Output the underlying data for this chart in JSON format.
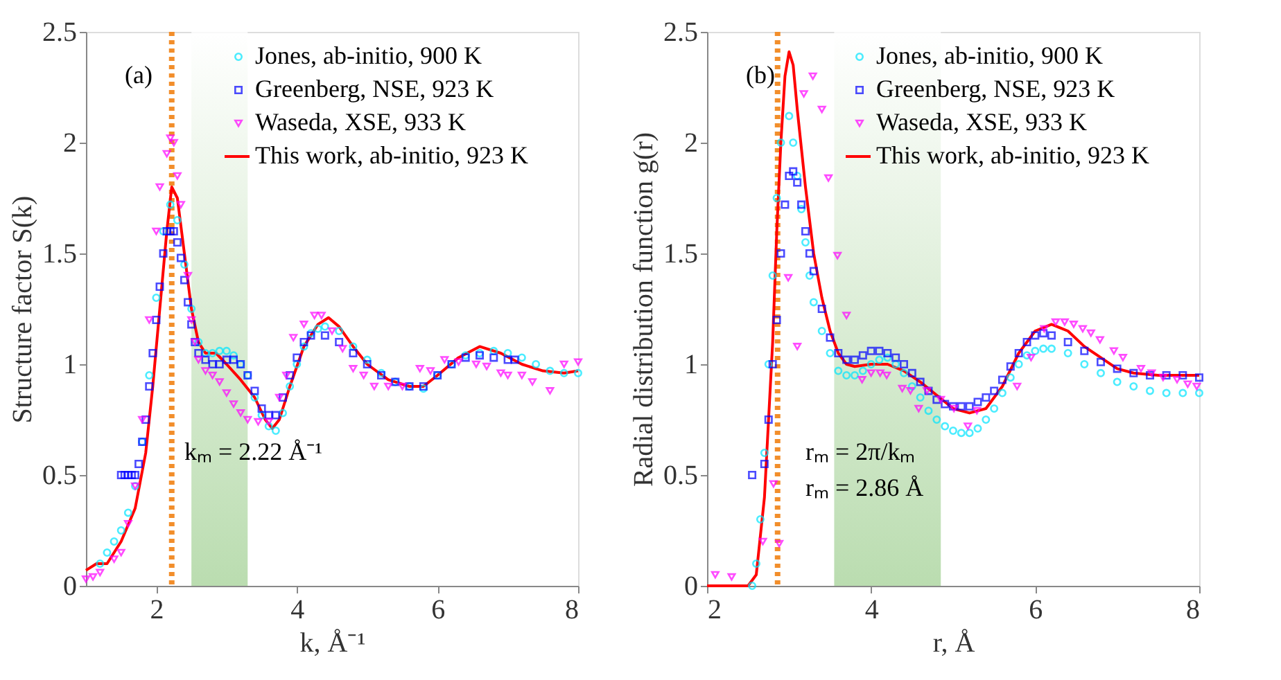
{
  "chart_data": [
    {
      "type": "scatter",
      "xlabel": "k, Å⁻¹",
      "ylabel": "Structure factor S(k)",
      "xlim": [
        1,
        8
      ],
      "ylim": [
        0,
        2.5
      ],
      "xticks": [
        2,
        4,
        6,
        8
      ],
      "yticks": [
        0,
        0.5,
        1,
        1.5,
        2,
        2.5
      ],
      "grid": false,
      "legend": "top right",
      "annotations": [
        "(a)",
        "kₘ = 2.22 Å⁻¹"
      ],
      "ref_lines": [
        {
          "axis": "x",
          "value": 2.22,
          "color": "#f28e2b",
          "line_style": "dotted"
        }
      ],
      "bands": [
        {
          "axis": "x",
          "from": 2.5,
          "to": 3.3,
          "color": "#a9d49c"
        }
      ],
      "series": [
        {
          "name": "Jones, ab-initio, 900 K",
          "marker": "circle",
          "color": "#00e5ff",
          "x": [
            1.2,
            1.3,
            1.4,
            1.5,
            1.6,
            1.7,
            1.8,
            1.9,
            2.0,
            2.1,
            2.2,
            2.3,
            2.4,
            2.5,
            2.6,
            2.7,
            2.8,
            2.9,
            3.0,
            3.1,
            3.2,
            3.3,
            3.4,
            3.5,
            3.6,
            3.7,
            3.8,
            3.9,
            4.0,
            4.1,
            4.2,
            4.3,
            4.4,
            4.6,
            4.8,
            5.0,
            5.2,
            5.4,
            5.6,
            5.8,
            6.0,
            6.2,
            6.4,
            6.6,
            6.8,
            7.0,
            7.2,
            7.4,
            7.6,
            7.8,
            8.0
          ],
          "values": [
            0.1,
            0.15,
            0.2,
            0.25,
            0.33,
            0.45,
            0.65,
            0.95,
            1.3,
            1.6,
            1.72,
            1.65,
            1.45,
            1.25,
            1.1,
            1.05,
            1.05,
            1.06,
            1.06,
            1.04,
            1.0,
            0.95,
            0.85,
            0.77,
            0.72,
            0.7,
            0.78,
            0.9,
            1.0,
            1.08,
            1.14,
            1.16,
            1.17,
            1.15,
            1.08,
            1.02,
            0.96,
            0.92,
            0.9,
            0.89,
            0.95,
            1.0,
            1.04,
            1.05,
            1.06,
            1.05,
            1.03,
            1.0,
            0.97,
            0.96,
            0.96
          ]
        },
        {
          "name": "Greenberg, NSE, 923 K",
          "marker": "square",
          "color": "#0000ff",
          "x": [
            1.5,
            1.55,
            1.6,
            1.65,
            1.7,
            1.75,
            1.8,
            1.85,
            1.9,
            1.95,
            2.0,
            2.05,
            2.1,
            2.15,
            2.2,
            2.25,
            2.3,
            2.35,
            2.4,
            2.45,
            2.5,
            2.55,
            2.6,
            2.7,
            2.8,
            2.9,
            3.0,
            3.1,
            3.2,
            3.3,
            3.4,
            3.5,
            3.6,
            3.7,
            3.8,
            3.9,
            4.0,
            4.1,
            4.2,
            4.4,
            4.6,
            4.8,
            5.0,
            5.2,
            5.4,
            5.6,
            5.8,
            6.0,
            6.2,
            6.4,
            6.6,
            6.8,
            7.0,
            7.1
          ],
          "values": [
            0.5,
            0.5,
            0.5,
            0.5,
            0.5,
            0.55,
            0.65,
            0.75,
            0.9,
            1.05,
            1.2,
            1.35,
            1.5,
            1.6,
            1.6,
            1.6,
            1.55,
            1.48,
            1.38,
            1.28,
            1.18,
            1.1,
            1.05,
            1.02,
            1.0,
            1.0,
            1.02,
            1.02,
            1.0,
            0.95,
            0.88,
            0.8,
            0.77,
            0.77,
            0.85,
            0.95,
            1.03,
            1.1,
            1.13,
            1.13,
            1.1,
            1.05,
            1.0,
            0.95,
            0.92,
            0.9,
            0.9,
            0.95,
            1.0,
            1.03,
            1.04,
            1.03,
            1.02,
            1.02
          ]
        },
        {
          "name": "Waseda, XSE, 933 K",
          "marker": "triangle",
          "color": "#ff00ff",
          "x": [
            1.0,
            1.1,
            1.2,
            1.4,
            1.5,
            1.6,
            1.7,
            1.8,
            1.9,
            2.0,
            2.05,
            2.15,
            2.2,
            2.25,
            2.3,
            2.35,
            2.45,
            2.5,
            2.55,
            2.6,
            2.7,
            2.8,
            2.9,
            3.0,
            3.1,
            3.2,
            3.3,
            3.45,
            3.6,
            3.75,
            3.85,
            3.95,
            4.1,
            4.25,
            4.35,
            4.5,
            4.65,
            4.8,
            4.95,
            5.1,
            5.3,
            5.5,
            5.75,
            5.9,
            6.1,
            6.3,
            6.55,
            6.7,
            6.9,
            7.0,
            7.2,
            7.35,
            7.6,
            7.8,
            8.0
          ],
          "values": [
            0.03,
            0.04,
            0.06,
            0.12,
            0.15,
            0.28,
            0.45,
            0.75,
            1.2,
            1.6,
            1.8,
            1.95,
            2.02,
            2.0,
            1.85,
            1.72,
            1.4,
            1.2,
            1.1,
            1.02,
            0.97,
            0.95,
            0.92,
            0.87,
            0.82,
            0.78,
            0.75,
            0.74,
            0.74,
            0.85,
            0.95,
            1.12,
            1.18,
            1.22,
            1.22,
            1.15,
            1.07,
            0.98,
            0.95,
            0.9,
            0.9,
            0.9,
            0.98,
            0.97,
            1.02,
            1.01,
            1.0,
            0.99,
            0.96,
            0.95,
            0.95,
            0.92,
            0.88,
            1.0,
            1.01
          ]
        },
        {
          "name": "This work, ab-initio, 923 K",
          "type": "line",
          "line_style": "solid",
          "color": "#ff0000",
          "x": [
            1.0,
            1.15,
            1.3,
            1.5,
            1.7,
            1.85,
            1.95,
            2.05,
            2.15,
            2.22,
            2.3,
            2.4,
            2.5,
            2.6,
            2.7,
            2.85,
            3.0,
            3.2,
            3.4,
            3.55,
            3.65,
            3.75,
            3.9,
            4.1,
            4.3,
            4.45,
            4.6,
            4.8,
            5.0,
            5.3,
            5.6,
            5.8,
            6.0,
            6.3,
            6.6,
            6.9,
            7.2,
            7.5,
            7.8,
            8.0
          ],
          "values": [
            0.07,
            0.1,
            0.1,
            0.2,
            0.35,
            0.6,
            0.9,
            1.25,
            1.6,
            1.8,
            1.75,
            1.5,
            1.25,
            1.1,
            1.05,
            1.05,
            1.0,
            0.93,
            0.85,
            0.75,
            0.71,
            0.75,
            0.9,
            1.08,
            1.18,
            1.21,
            1.17,
            1.08,
            1.0,
            0.93,
            0.9,
            0.9,
            0.95,
            1.03,
            1.08,
            1.05,
            1.0,
            0.97,
            0.96,
            0.97
          ]
        }
      ]
    },
    {
      "type": "scatter",
      "xlabel": "r, Å",
      "ylabel": "Radial distribution function g(r)",
      "xlim": [
        2,
        8
      ],
      "ylim": [
        0,
        2.5
      ],
      "xticks": [
        2,
        4,
        6,
        8
      ],
      "yticks": [
        0,
        0.5,
        1,
        1.5,
        2,
        2.5
      ],
      "grid": false,
      "legend": "top right",
      "annotations": [
        "(b)",
        "rₘ = 2π/kₘ",
        "rₘ = 2.86 Å"
      ],
      "ref_lines": [
        {
          "axis": "x",
          "value": 2.86,
          "color": "#f28e2b",
          "line_style": "dotted"
        }
      ],
      "bands": [
        {
          "axis": "x",
          "from": 3.55,
          "to": 4.85,
          "color": "#a9d49c"
        }
      ],
      "series": [
        {
          "name": "Jones, ab-initio, 900 K",
          "marker": "circle",
          "color": "#00e5ff",
          "x": [
            2.55,
            2.6,
            2.65,
            2.7,
            2.75,
            2.8,
            2.85,
            2.9,
            3.0,
            3.05,
            3.1,
            3.15,
            3.2,
            3.25,
            3.3,
            3.4,
            3.5,
            3.6,
            3.7,
            3.8,
            3.9,
            4.0,
            4.1,
            4.2,
            4.3,
            4.4,
            4.5,
            4.6,
            4.7,
            4.8,
            4.9,
            5.0,
            5.1,
            5.2,
            5.3,
            5.4,
            5.5,
            5.6,
            5.7,
            5.8,
            5.9,
            6.0,
            6.1,
            6.2,
            6.4,
            6.6,
            6.8,
            7.0,
            7.2,
            7.4,
            7.6,
            7.8,
            8.0
          ],
          "values": [
            0.0,
            0.1,
            0.3,
            0.6,
            1.0,
            1.4,
            1.75,
            2.0,
            2.12,
            2.0,
            1.85,
            1.7,
            1.55,
            1.4,
            1.28,
            1.15,
            1.05,
            0.97,
            0.95,
            0.95,
            0.97,
            1.0,
            1.02,
            1.03,
            1.0,
            0.96,
            0.9,
            0.85,
            0.79,
            0.75,
            0.72,
            0.7,
            0.69,
            0.69,
            0.71,
            0.75,
            0.8,
            0.87,
            0.94,
            1.0,
            1.04,
            1.06,
            1.07,
            1.07,
            1.05,
            1.0,
            0.96,
            0.92,
            0.9,
            0.88,
            0.87,
            0.87,
            0.87
          ]
        },
        {
          "name": "Greenberg, NSE, 923 K",
          "marker": "square",
          "color": "#0000ff",
          "x": [
            2.55,
            2.7,
            2.75,
            2.8,
            2.85,
            2.9,
            2.95,
            3.0,
            3.05,
            3.1,
            3.15,
            3.2,
            3.25,
            3.3,
            3.4,
            3.5,
            3.6,
            3.7,
            3.8,
            3.9,
            4.0,
            4.1,
            4.2,
            4.3,
            4.4,
            4.5,
            4.6,
            4.7,
            4.8,
            4.9,
            5.0,
            5.1,
            5.2,
            5.3,
            5.4,
            5.5,
            5.6,
            5.7,
            5.8,
            5.9,
            6.0,
            6.1,
            6.2,
            6.4,
            6.6,
            6.8,
            7.0,
            7.2,
            7.4,
            7.6,
            7.8,
            8.0
          ],
          "values": [
            0.5,
            0.55,
            0.75,
            1.0,
            1.2,
            1.5,
            1.72,
            1.85,
            1.87,
            1.82,
            1.72,
            1.6,
            1.5,
            1.42,
            1.25,
            1.12,
            1.05,
            1.02,
            1.02,
            1.04,
            1.06,
            1.06,
            1.05,
            1.03,
            1.0,
            0.96,
            0.92,
            0.88,
            0.84,
            0.82,
            0.81,
            0.81,
            0.81,
            0.83,
            0.85,
            0.88,
            0.93,
            0.99,
            1.05,
            1.1,
            1.13,
            1.14,
            1.13,
            1.1,
            1.06,
            1.01,
            0.98,
            0.96,
            0.95,
            0.95,
            0.95,
            0.94
          ]
        },
        {
          "name": "Waseda, XSE, 933 K",
          "marker": "triangle",
          "color": "#ff00ff",
          "x": [
            2.1,
            2.3,
            2.68,
            2.81,
            2.88,
            2.99,
            3.1,
            3.18,
            3.29,
            3.4,
            3.48,
            3.59,
            3.7,
            3.89,
            4.0,
            4.11,
            4.19,
            4.38,
            4.48,
            4.58,
            4.68,
            4.85,
            5.01,
            5.18,
            5.29,
            5.78,
            5.95,
            6.11,
            6.25,
            6.36,
            6.47,
            6.58,
            6.68,
            6.79,
            6.96,
            7.07,
            7.29,
            7.42,
            7.56,
            7.73,
            7.86,
            7.97
          ],
          "values": [
            0.05,
            0.04,
            0.2,
            0.46,
            0.19,
            1.39,
            1.08,
            2.22,
            2.3,
            2.15,
            1.84,
            1.49,
            1.22,
            0.93,
            0.96,
            0.96,
            0.95,
            0.89,
            0.88,
            0.8,
            0.88,
            0.84,
            0.8,
            0.72,
            0.79,
            0.9,
            1.03,
            1.16,
            1.19,
            1.19,
            1.18,
            1.16,
            1.14,
            1.11,
            1.06,
            1.03,
            0.98,
            0.96,
            0.94,
            0.93,
            0.91,
            0.9
          ]
        },
        {
          "name": "This work, ab-initio, 923 K",
          "type": "line",
          "line_style": "solid",
          "color": "#ff0000",
          "x": [
            2.0,
            2.5,
            2.6,
            2.7,
            2.8,
            2.85,
            2.9,
            2.95,
            3.0,
            3.05,
            3.1,
            3.2,
            3.3,
            3.4,
            3.5,
            3.6,
            3.7,
            3.8,
            4.0,
            4.2,
            4.4,
            4.6,
            4.8,
            5.0,
            5.2,
            5.4,
            5.6,
            5.8,
            6.0,
            6.2,
            6.4,
            6.6,
            6.8,
            7.0,
            7.2,
            7.5,
            7.8,
            8.0
          ],
          "values": [
            0.0,
            0.0,
            0.05,
            0.4,
            1.1,
            1.6,
            2.0,
            2.3,
            2.41,
            2.35,
            2.15,
            1.8,
            1.5,
            1.3,
            1.15,
            1.05,
            1.0,
            0.99,
            1.0,
            1.0,
            0.97,
            0.92,
            0.86,
            0.8,
            0.78,
            0.8,
            0.9,
            1.05,
            1.15,
            1.18,
            1.15,
            1.08,
            1.03,
            0.98,
            0.96,
            0.95,
            0.95,
            0.95
          ]
        }
      ]
    }
  ]
}
